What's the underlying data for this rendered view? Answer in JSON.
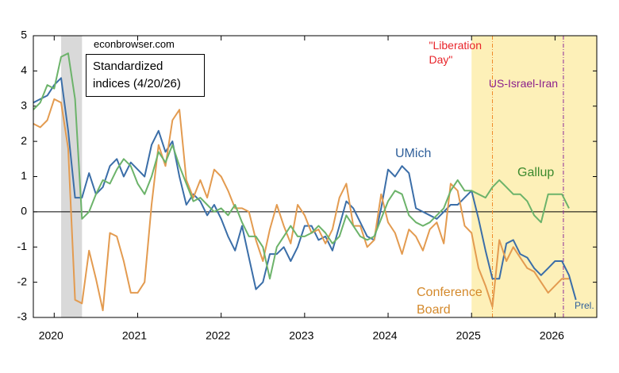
{
  "chart_data": {
    "type": "line",
    "annotations": {
      "source": "econbrowser.com",
      "note": "Standardized indices (4/20/26)",
      "prelim": "Prel."
    },
    "x": [
      2019.75,
      2019.833,
      2019.917,
      2020,
      2020.083,
      2020.167,
      2020.25,
      2020.333,
      2020.417,
      2020.5,
      2020.583,
      2020.667,
      2020.75,
      2020.833,
      2020.917,
      2021,
      2021.083,
      2021.167,
      2021.25,
      2021.333,
      2021.417,
      2021.5,
      2021.583,
      2021.667,
      2021.75,
      2021.833,
      2021.917,
      2022,
      2022.083,
      2022.167,
      2022.25,
      2022.333,
      2022.417,
      2022.5,
      2022.583,
      2022.667,
      2022.75,
      2022.833,
      2022.917,
      2023,
      2023.083,
      2023.167,
      2023.25,
      2023.333,
      2023.417,
      2023.5,
      2023.583,
      2023.667,
      2023.75,
      2023.833,
      2023.917,
      2024,
      2024.083,
      2024.167,
      2024.25,
      2024.333,
      2024.417,
      2024.5,
      2024.583,
      2024.667,
      2024.75,
      2024.833,
      2024.917,
      2025,
      2025.083,
      2025.167,
      2025.25,
      2025.333,
      2025.417,
      2025.5,
      2025.583,
      2025.667,
      2025.75,
      2025.833,
      2025.917,
      2026,
      2026.083,
      2026.167,
      2026.25
    ],
    "series": [
      {
        "name": "UMich",
        "color": "#3b6ea8",
        "text_color": "#2f5f9a",
        "values": [
          3.1,
          3.2,
          3.3,
          3.6,
          3.8,
          2.3,
          0.4,
          0.4,
          1.1,
          0.5,
          0.7,
          1.3,
          1.5,
          1.0,
          1.4,
          1.2,
          1.0,
          1.9,
          2.3,
          1.7,
          2.0,
          1.0,
          0.2,
          0.5,
          0.3,
          -0.1,
          0.2,
          -0.2,
          -0.7,
          -1.1,
          -0.4,
          -1.3,
          -2.2,
          -2.0,
          -1.2,
          -1.2,
          -1.0,
          -1.4,
          -1.0,
          -0.4,
          -0.4,
          -0.8,
          -0.7,
          -1.1,
          -0.4,
          0.3,
          0.1,
          -0.3,
          -0.7,
          -0.8,
          0.1,
          1.2,
          1.0,
          1.3,
          1.1,
          0.1,
          0.0,
          -0.1,
          -0.2,
          0.0,
          0.2,
          0.2,
          0.4,
          0.6,
          -0.2,
          -1.1,
          -1.9,
          -1.9,
          -0.9,
          -0.8,
          -1.2,
          -1.3,
          -1.6,
          -1.8,
          -1.6,
          -1.4,
          -1.4,
          -1.8,
          -2.5
        ]
      },
      {
        "name": "Conference Board",
        "color": "#e39b50",
        "text_color": "#d4892b",
        "values": [
          2.5,
          2.4,
          2.6,
          3.2,
          3.1,
          1.8,
          -2.5,
          -2.6,
          -1.1,
          -1.9,
          -2.8,
          -0.6,
          -0.7,
          -1.4,
          -2.3,
          -2.3,
          -2.0,
          0.2,
          1.9,
          1.3,
          2.6,
          2.9,
          0.9,
          0.4,
          0.9,
          0.4,
          1.2,
          1.0,
          0.6,
          0.1,
          0.1,
          0.0,
          -0.8,
          -1.4,
          -0.5,
          0.2,
          -0.4,
          -0.9,
          0.2,
          -0.1,
          -0.6,
          -0.5,
          -0.9,
          -0.5,
          0.4,
          0.8,
          -0.4,
          -0.4,
          -1.0,
          -0.8,
          0.5,
          -0.3,
          -0.6,
          -1.2,
          -0.5,
          -0.7,
          -1.1,
          -0.5,
          -0.3,
          -0.9,
          0.8,
          0.6,
          -0.4,
          -0.6,
          -1.6,
          -2.1,
          -2.7,
          -0.8,
          -1.4,
          -1.0,
          -1.3,
          -1.6,
          -1.7,
          -2.0,
          -2.3,
          -2.1,
          -1.9,
          -1.9,
          null
        ]
      },
      {
        "name": "Gallup",
        "color": "#6cb36a",
        "text_color": "#3c8a2e",
        "values": [
          2.9,
          3.1,
          3.6,
          3.5,
          4.4,
          4.5,
          3.2,
          -0.2,
          0.0,
          0.5,
          0.9,
          0.8,
          1.2,
          1.5,
          1.3,
          0.8,
          0.5,
          1.0,
          1.7,
          1.4,
          1.9,
          1.3,
          0.8,
          0.3,
          0.4,
          0.2,
          0.0,
          0.1,
          -0.1,
          0.2,
          -0.3,
          -0.7,
          -0.7,
          -1.0,
          -1.9,
          -1.0,
          -0.7,
          -0.4,
          -0.7,
          -0.7,
          -0.6,
          -0.4,
          -0.6,
          -0.9,
          -0.7,
          -0.1,
          -0.4,
          -0.7,
          -0.8,
          -0.7,
          -0.2,
          0.3,
          0.6,
          0.5,
          -0.1,
          -0.3,
          -0.4,
          -0.3,
          -0.1,
          0.1,
          0.6,
          0.9,
          0.6,
          0.6,
          0.5,
          0.4,
          0.7,
          0.9,
          0.7,
          0.5,
          0.5,
          0.3,
          -0.1,
          -0.3,
          0.5,
          0.5,
          0.5,
          0.1,
          null
        ]
      }
    ],
    "shading": [
      {
        "from": 2020.083,
        "to": 2020.333,
        "color": "#d9d9d9"
      },
      {
        "from": 2025,
        "to": 2026.5,
        "color": "#fdf0b8"
      }
    ],
    "events": [
      {
        "x": 2025.25,
        "label": "\"Liberation Day\"",
        "color": "#f08a2a",
        "text_color": "#e8242a"
      },
      {
        "x": 2026.1,
        "label": "US-Israel-Iran",
        "color": "#8b2b9b",
        "text_color": "#8b1f8b"
      }
    ],
    "xlim": [
      2019.75,
      2026.5
    ],
    "xticks": [
      2020,
      2021,
      2022,
      2023,
      2024,
      2025,
      2026
    ],
    "ylim": [
      -3,
      5
    ],
    "yticks": [
      -3,
      -2,
      -1,
      0,
      1,
      2,
      3,
      4,
      5
    ]
  }
}
